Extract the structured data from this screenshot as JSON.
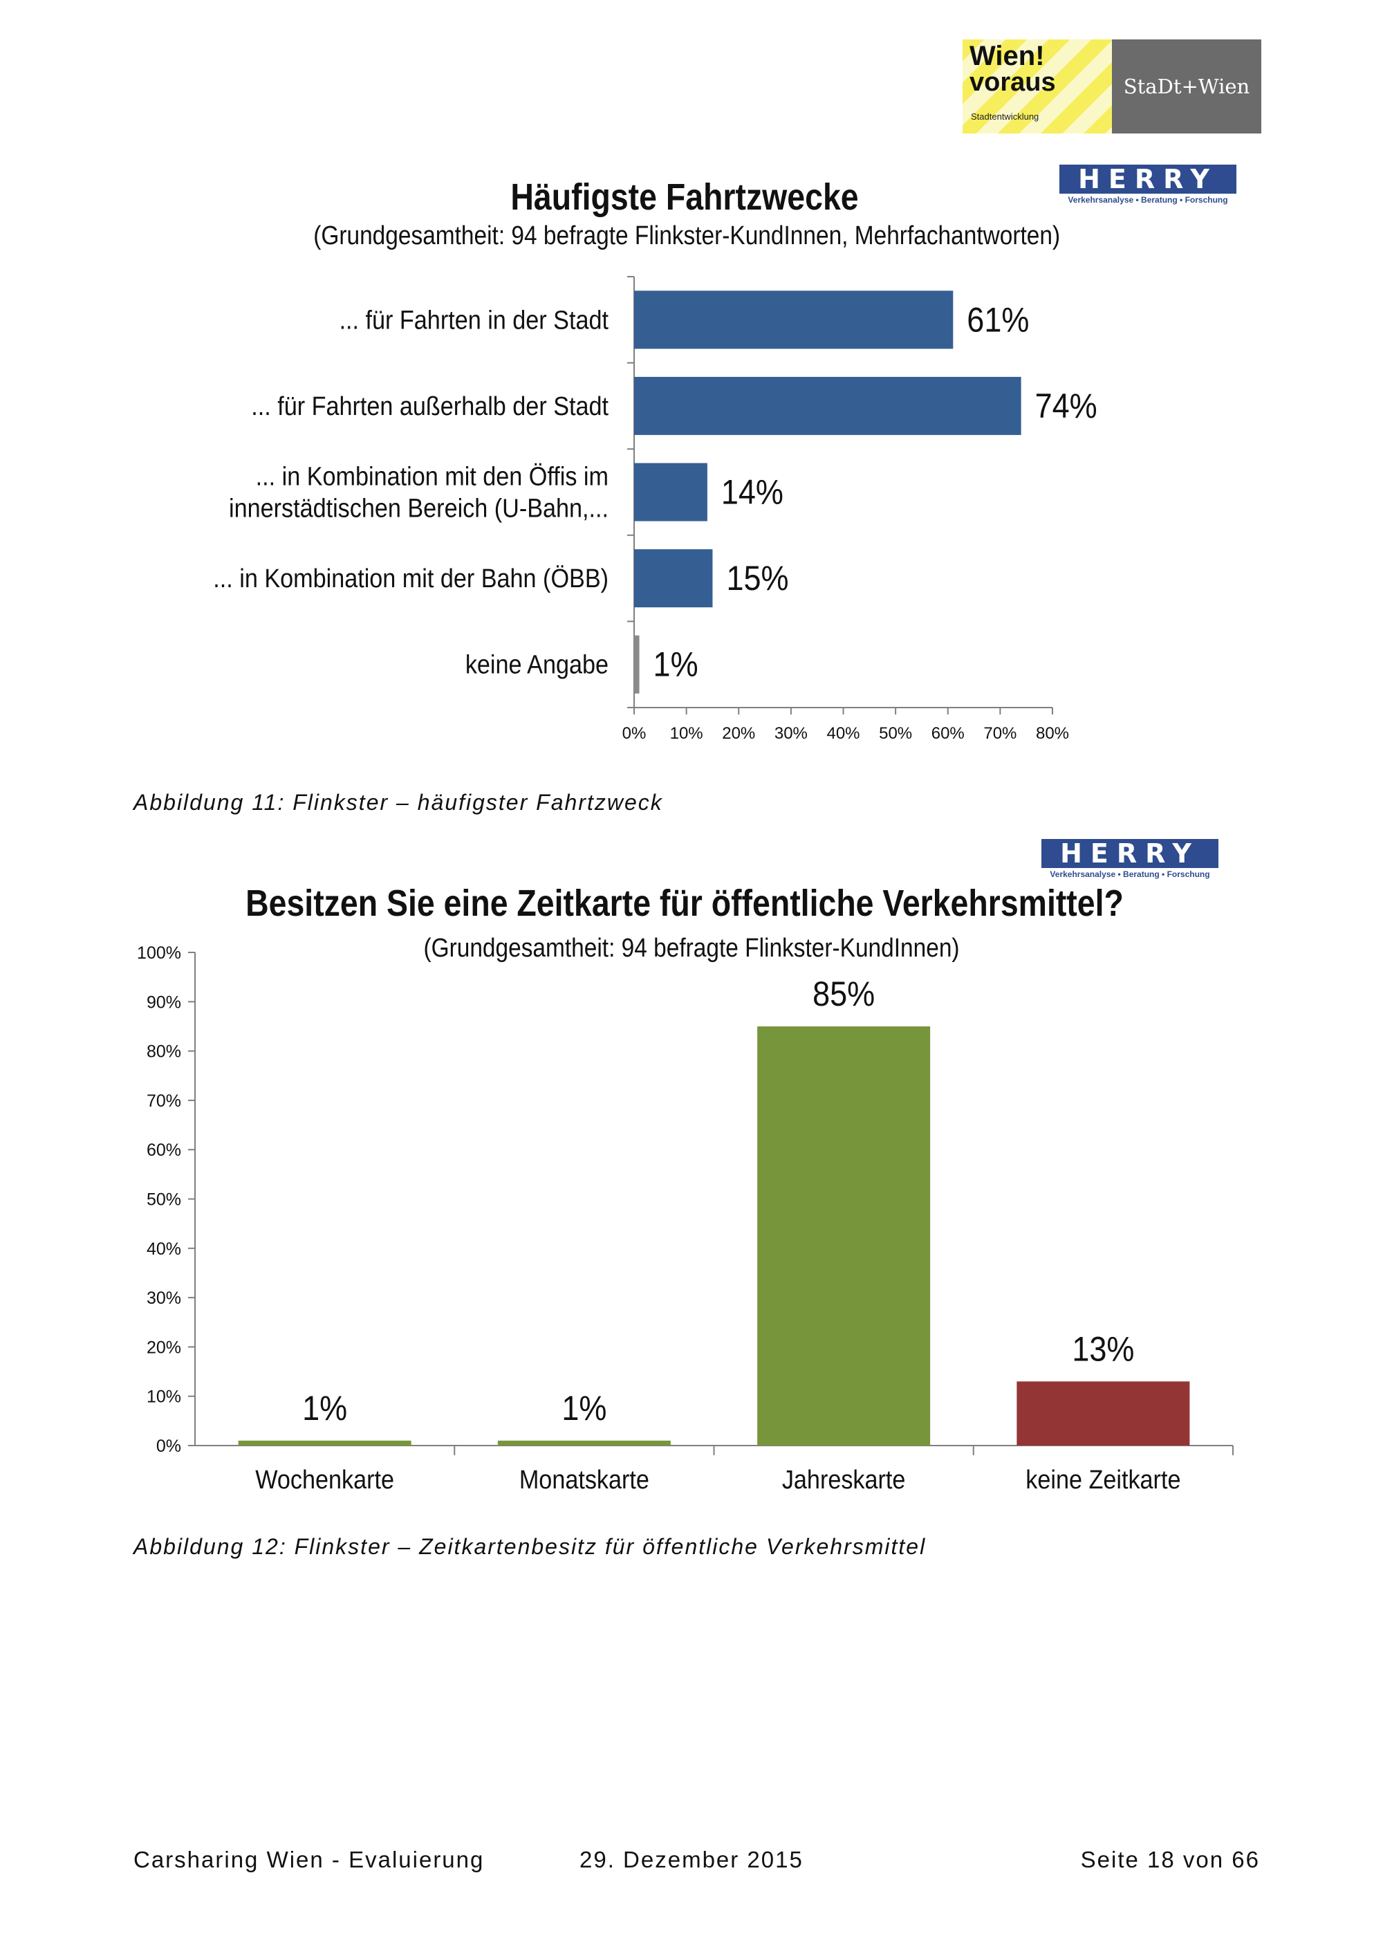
{
  "header": {
    "logo_wien_line1": "Wien!",
    "logo_wien_line2": "voraus",
    "logo_wien_sub": "Stadtentwicklung",
    "logo_stadt": "StaDt+Wien",
    "herry_name": "HERRY",
    "herry_tagline": "Verkehrsanalyse • Beratung • Forschung"
  },
  "figure1": {
    "caption": "Abbildung 11: Flinkster – häufigster Fahrtzweck"
  },
  "figure2": {
    "caption": "Abbildung 12: Flinkster – Zeitkartenbesitz für öffentliche Verkehrsmittel"
  },
  "footer": {
    "left": "Carsharing Wien - Evaluierung",
    "middle": "29. Dezember 2015",
    "right": "Seite 18 von 66"
  },
  "chart_data": [
    {
      "type": "bar",
      "orientation": "horizontal",
      "title": "Häufigste Fahrtzwecke",
      "subtitle": "(Grundgesamtheit: 94 befragte Flinkster-KundInnen, Mehrfachantworten)",
      "categories": [
        [
          "... für Fahrten in der Stadt"
        ],
        [
          "... für Fahrten außerhalb der Stadt"
        ],
        [
          "... in Kombination mit den Öffis im",
          "innerstädtischen Bereich (U-Bahn,..."
        ],
        [
          "... in Kombination mit der Bahn (ÖBB)"
        ],
        [
          "keine Angabe"
        ]
      ],
      "values": [
        61,
        74,
        14,
        15,
        1
      ],
      "data_labels": [
        "61%",
        "74%",
        "14%",
        "15%",
        "1%"
      ],
      "xlim": [
        0,
        80
      ],
      "xticks": [
        "0%",
        "10%",
        "20%",
        "30%",
        "40%",
        "50%",
        "60%",
        "70%",
        "80%"
      ],
      "color": "#355f93",
      "grid": false
    },
    {
      "type": "bar",
      "orientation": "vertical",
      "title": "Besitzen Sie eine Zeitkarte für öffentliche Verkehrsmittel?",
      "subtitle": "(Grundgesamtheit: 94 befragte Flinkster-KundInnen)",
      "categories": [
        "Wochenkarte",
        "Monatskarte",
        "Jahreskarte",
        "keine Zeitkarte"
      ],
      "values": [
        1,
        1,
        85,
        13
      ],
      "data_labels": [
        "1%",
        "1%",
        "85%",
        "13%"
      ],
      "colors": [
        "#77963c",
        "#77963c",
        "#77963c",
        "#943535"
      ],
      "ylim": [
        0,
        100
      ],
      "yticks": [
        "0%",
        "10%",
        "20%",
        "30%",
        "40%",
        "50%",
        "60%",
        "70%",
        "80%",
        "90%",
        "100%"
      ],
      "grid": false
    }
  ]
}
